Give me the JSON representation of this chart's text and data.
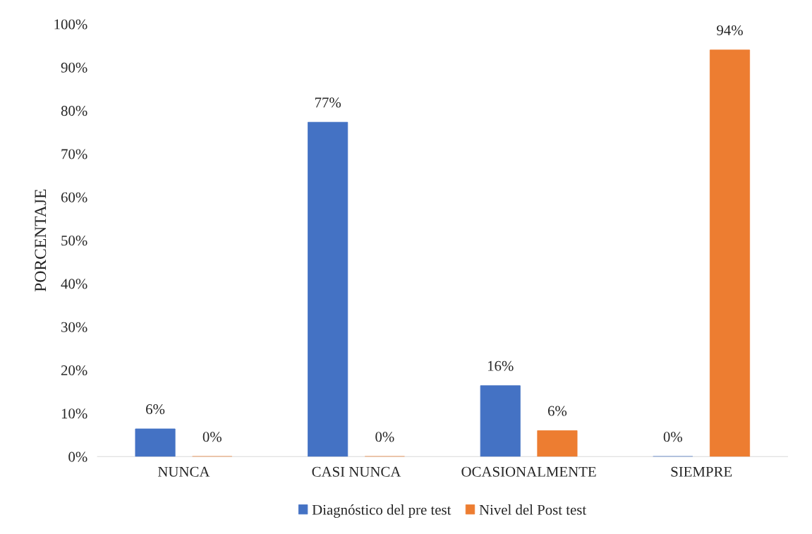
{
  "chart_data": {
    "type": "bar",
    "ylabel": "PORCENTAJE",
    "categories": [
      "NUNCA",
      "CASI NUNCA",
      "OCASIONALMENTE",
      "SIEMPRE"
    ],
    "series": [
      {
        "name": "Diagnóstico del pre test",
        "color": "#4472c4",
        "values": [
          6.4,
          77.3,
          16.4,
          0
        ],
        "value_labels": [
          "6%",
          "77%",
          "16%",
          "0%"
        ]
      },
      {
        "name": "Nivel del Post test",
        "color": "#ed7d31",
        "values": [
          0,
          0,
          6,
          94
        ],
        "value_labels": [
          "0%",
          "0%",
          "6%",
          "94%"
        ]
      }
    ],
    "ylim": [
      0,
      100
    ],
    "yticks": [
      {
        "value": 0,
        "label": "0%"
      },
      {
        "value": 10,
        "label": "10%"
      },
      {
        "value": 20,
        "label": "20%"
      },
      {
        "value": 30,
        "label": "30%"
      },
      {
        "value": 40,
        "label": "40%"
      },
      {
        "value": 50,
        "label": "50%"
      },
      {
        "value": 60,
        "label": "60%"
      },
      {
        "value": 70,
        "label": "70%"
      },
      {
        "value": 80,
        "label": "80%"
      },
      {
        "value": 90,
        "label": "90%"
      },
      {
        "value": 100,
        "label": "100%"
      }
    ],
    "grid": false,
    "legend": "bottom"
  }
}
